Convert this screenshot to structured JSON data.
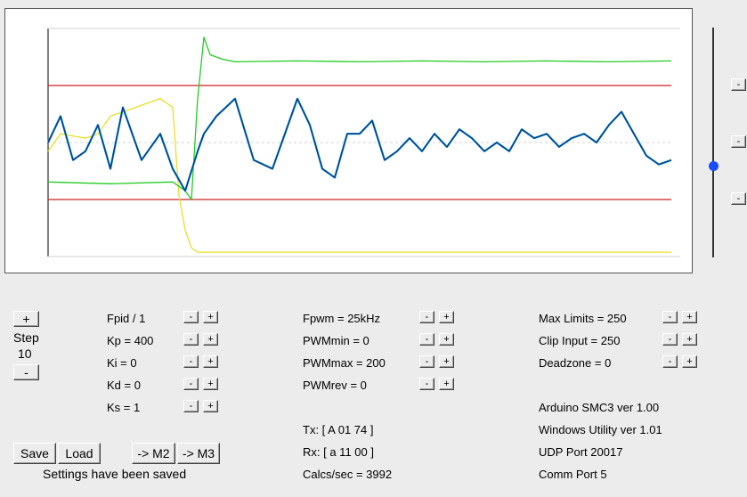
{
  "chart_data": {
    "type": "line",
    "title": "",
    "xlabel": "",
    "ylabel": "",
    "grid": false,
    "xlim": [
      0,
      100
    ],
    "ylim": [
      -1.3,
      1.3
    ],
    "colors": {
      "limit": "#cc2222",
      "position": "#0b3c8c",
      "target": "#2ec4e6",
      "pwm": "#22cc22",
      "input": "#e8e02a",
      "reference": "#d0d0d0"
    },
    "limits": [
      0.65,
      -0.65
    ],
    "series": [
      {
        "role": "position",
        "x": [
          0,
          2,
          4,
          6,
          8,
          10,
          12,
          15,
          18,
          20,
          22,
          24,
          25,
          27,
          30,
          33,
          36,
          38,
          40,
          42,
          44,
          46,
          48,
          50,
          52,
          54,
          56,
          58,
          60,
          62,
          64,
          66,
          68,
          70,
          72,
          74,
          76,
          78,
          80,
          82,
          84,
          86,
          88,
          90,
          92,
          94,
          96,
          98,
          100
        ],
        "y": [
          0,
          0.3,
          -0.2,
          -0.1,
          0.2,
          -0.3,
          0.4,
          -0.2,
          0.1,
          -0.3,
          -0.55,
          -0.1,
          0.1,
          0.3,
          0.5,
          -0.2,
          -0.3,
          0.1,
          0.5,
          0.2,
          -0.3,
          -0.4,
          0.1,
          0.1,
          0.25,
          -0.2,
          -0.1,
          0.05,
          -0.1,
          0.1,
          -0.05,
          0.15,
          0.05,
          -0.1,
          0,
          -0.1,
          0.15,
          0.05,
          0.1,
          -0.05,
          0.05,
          0.1,
          0,
          0.2,
          0.35,
          0.1,
          -0.15,
          -0.25,
          -0.2
        ]
      },
      {
        "role": "pwm",
        "x": [
          0,
          10,
          20,
          22,
          23,
          24,
          25,
          26,
          28,
          30,
          40,
          50,
          60,
          70,
          80,
          90,
          100
        ],
        "y": [
          -0.45,
          -0.47,
          -0.45,
          -0.55,
          -0.65,
          0.5,
          1.2,
          1.0,
          0.95,
          0.92,
          0.93,
          0.92,
          0.93,
          0.92,
          0.93,
          0.92,
          0.93
        ]
      },
      {
        "role": "input",
        "x": [
          0,
          2,
          6,
          8,
          10,
          12,
          14,
          16,
          18,
          20,
          21,
          22,
          23,
          24,
          30,
          40,
          50,
          60,
          70,
          80,
          90,
          100
        ],
        "y": [
          -0.1,
          0.1,
          0.05,
          0.1,
          0.3,
          0.35,
          0.4,
          0.45,
          0.5,
          0.4,
          -0.6,
          -1.0,
          -1.2,
          -1.25,
          -1.25,
          -1.25,
          -1.25,
          -1.25,
          -1.25,
          -1.25,
          -1.25,
          -1.25
        ]
      }
    ]
  },
  "controls": {
    "step_plus": "+",
    "step_label": "Step",
    "step_value": "10",
    "step_minus": "-",
    "col1": [
      "Fpid / 1",
      "Kp = 400",
      "Ki = 0",
      "Kd = 0",
      "Ks = 1"
    ],
    "col2": [
      "Fpwm = 25kHz",
      "PWMmin = 0",
      "PWMmax = 200",
      "PWMrev = 0"
    ],
    "col3": [
      "Max Limits = 250",
      "Clip Input = 250",
      "Deadzone = 0"
    ],
    "minus": "-",
    "plus": "+"
  },
  "comms": {
    "tx": "Tx: [ A 01 74 ]",
    "rx": "Rx: [ a 11 00 ]",
    "calcs": "Calcs/sec = 3992"
  },
  "info": {
    "arduino": "Arduino SMC3 ver 1.00",
    "windows": "Windows Utility ver 1.01",
    "udp": "UDP Port 20017",
    "comm": "Comm Port 5"
  },
  "buttons": {
    "save": "Save",
    "load": "Load",
    "m2": "-> M2",
    "m3": "-> M3"
  },
  "status": "Settings have been saved",
  "side_buttons": [
    "-",
    "-",
    "-"
  ]
}
